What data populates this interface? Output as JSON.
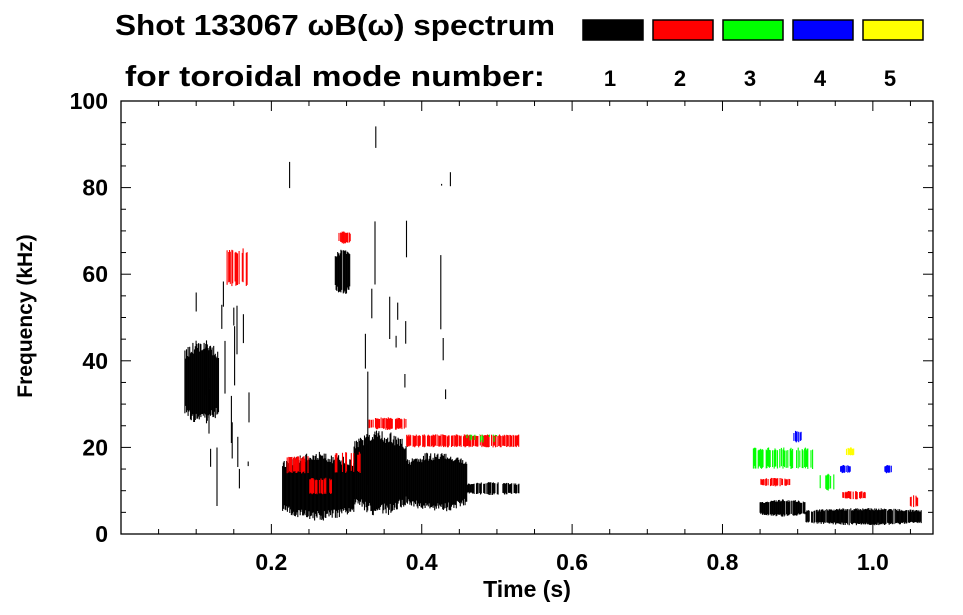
{
  "chart_data": {
    "type": "heatmap",
    "title": "Shot 133067 ωB(ω) spectrum",
    "subtitle": "for toroidal mode number:",
    "xlabel": "Time (s)",
    "ylabel": "Frequency (kHz)",
    "xlim": [
      0,
      1.08
    ],
    "ylim": [
      0,
      100
    ],
    "x_ticks": [
      {
        "value": 0.2,
        "label": "0.2"
      },
      {
        "value": 0.4,
        "label": "0.4"
      },
      {
        "value": 0.6,
        "label": "0.6"
      },
      {
        "value": 0.8,
        "label": "0.8"
      },
      {
        "value": 1.0,
        "label": "1.0"
      }
    ],
    "y_ticks": [
      {
        "value": 0,
        "label": "0"
      },
      {
        "value": 20,
        "label": "20"
      },
      {
        "value": 40,
        "label": "40"
      },
      {
        "value": 60,
        "label": "60"
      },
      {
        "value": 80,
        "label": "80"
      },
      {
        "value": 100,
        "label": "100"
      }
    ],
    "x_minor_step": 0.05,
    "y_minor_step": 5,
    "legend": {
      "placement": "top-right",
      "entries": [
        {
          "mode": "1",
          "color": "#000000"
        },
        {
          "mode": "2",
          "color": "#ff0000"
        },
        {
          "mode": "3",
          "color": "#00ff00"
        },
        {
          "mode": "4",
          "color": "#0000ff"
        },
        {
          "mode": "5",
          "color": "#ffff00"
        }
      ]
    },
    "features": [
      {
        "mode": 1,
        "t": [
          0.085,
          0.13
        ],
        "f": [
          25,
          45
        ],
        "density": 1.0
      },
      {
        "mode": 1,
        "t": [
          0.1,
          0.175
        ],
        "f": [
          5,
          60
        ],
        "density": 0.25
      },
      {
        "mode": 1,
        "t": [
          0.215,
          0.31
        ],
        "f": [
          3,
          19
        ],
        "density": 1.0
      },
      {
        "mode": 1,
        "t": [
          0.31,
          0.38
        ],
        "f": [
          4,
          24
        ],
        "density": 1.0
      },
      {
        "mode": 1,
        "t": [
          0.38,
          0.46
        ],
        "f": [
          5,
          19
        ],
        "density": 1.0
      },
      {
        "mode": 1,
        "t": [
          0.46,
          0.53
        ],
        "f": [
          9,
          12
        ],
        "density": 0.8
      },
      {
        "mode": 1,
        "t": [
          0.285,
          0.305
        ],
        "f": [
          55,
          66
        ],
        "density": 0.9
      },
      {
        "mode": 1,
        "t": [
          0.325,
          0.34
        ],
        "f": [
          0,
          100
        ],
        "density": 0.4
      },
      {
        "mode": 1,
        "t": [
          0.42,
          0.44
        ],
        "f": [
          25,
          90
        ],
        "density": 0.2
      },
      {
        "mode": 1,
        "t": [
          0.22,
          0.23
        ],
        "f": [
          20,
          95
        ],
        "density": 0.2
      },
      {
        "mode": 1,
        "t": [
          0.35,
          0.38
        ],
        "f": [
          30,
          75
        ],
        "density": 0.15
      },
      {
        "mode": 1,
        "t": [
          0.85,
          0.91
        ],
        "f": [
          4,
          8
        ],
        "density": 0.9
      },
      {
        "mode": 1,
        "t": [
          0.91,
          1.065
        ],
        "f": [
          2,
          6
        ],
        "density": 0.9
      },
      {
        "mode": 2,
        "t": [
          0.14,
          0.17
        ],
        "f": [
          57,
          66
        ],
        "density": 0.6
      },
      {
        "mode": 2,
        "t": [
          0.29,
          0.305
        ],
        "f": [
          67,
          70
        ],
        "density": 0.8
      },
      {
        "mode": 2,
        "t": [
          0.22,
          0.25
        ],
        "f": [
          14,
          18
        ],
        "density": 0.6
      },
      {
        "mode": 2,
        "t": [
          0.25,
          0.285
        ],
        "f": [
          9,
          13
        ],
        "density": 0.6
      },
      {
        "mode": 2,
        "t": [
          0.285,
          0.32
        ],
        "f": [
          14,
          19
        ],
        "density": 0.5
      },
      {
        "mode": 2,
        "t": [
          0.33,
          0.38
        ],
        "f": [
          24,
          27
        ],
        "density": 0.8
      },
      {
        "mode": 2,
        "t": [
          0.38,
          0.53
        ],
        "f": [
          20,
          23
        ],
        "density": 0.7
      },
      {
        "mode": 2,
        "t": [
          0.85,
          0.89
        ],
        "f": [
          11,
          13
        ],
        "density": 0.8
      },
      {
        "mode": 2,
        "t": [
          0.96,
          0.99
        ],
        "f": [
          8,
          10
        ],
        "density": 0.8
      },
      {
        "mode": 2,
        "t": [
          1.05,
          1.06
        ],
        "f": [
          6,
          9
        ],
        "density": 0.8
      },
      {
        "mode": 3,
        "t": [
          0.84,
          0.92
        ],
        "f": [
          15,
          20
        ],
        "density": 0.5
      },
      {
        "mode": 3,
        "t": [
          0.93,
          0.95
        ],
        "f": [
          10,
          14
        ],
        "density": 0.6
      },
      {
        "mode": 3,
        "t": [
          0.46,
          0.5
        ],
        "f": [
          21,
          23
        ],
        "density": 0.4
      },
      {
        "mode": 4,
        "t": [
          0.895,
          0.905
        ],
        "f": [
          21,
          24
        ],
        "density": 0.8
      },
      {
        "mode": 4,
        "t": [
          0.955,
          0.97
        ],
        "f": [
          14,
          16
        ],
        "density": 0.8
      },
      {
        "mode": 4,
        "t": [
          1.015,
          1.025
        ],
        "f": [
          14,
          16
        ],
        "density": 0.8
      },
      {
        "mode": 5,
        "t": [
          0.965,
          0.975
        ],
        "f": [
          18,
          20
        ],
        "density": 0.9
      }
    ]
  }
}
